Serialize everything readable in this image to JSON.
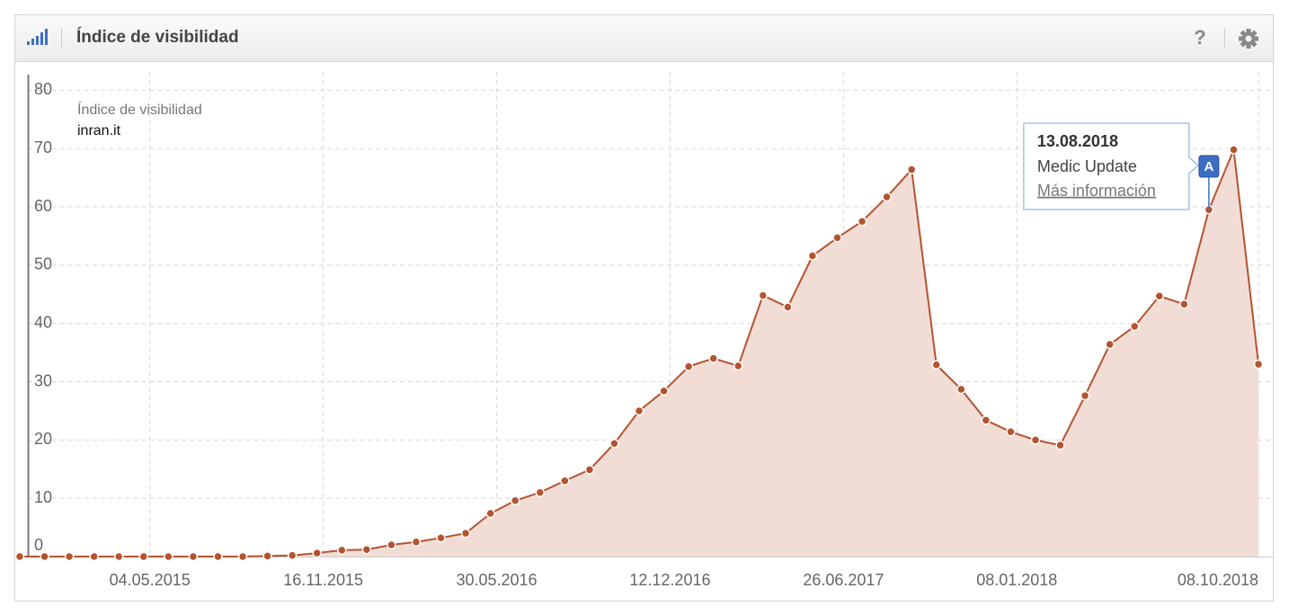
{
  "header": {
    "title": "Índice de visibilidad",
    "help": "?"
  },
  "chart_data": {
    "type": "area",
    "legend_title": "Índice de visibilidad",
    "x": [
      "08.12.2014",
      "05.01.2015",
      "02.02.2015",
      "02.03.2015",
      "30.03.2015",
      "27.04.2015",
      "25.05.2015",
      "22.06.2015",
      "20.07.2015",
      "17.08.2015",
      "14.09.2015",
      "12.10.2015",
      "09.11.2015",
      "07.12.2015",
      "04.01.2016",
      "01.02.2016",
      "29.02.2016",
      "28.03.2016",
      "25.04.2016",
      "23.05.2016",
      "20.06.2016",
      "18.07.2016",
      "15.08.2016",
      "12.09.2016",
      "10.10.2016",
      "07.11.2016",
      "05.12.2016",
      "02.01.2017",
      "30.01.2017",
      "27.02.2017",
      "27.03.2017",
      "24.04.2017",
      "22.05.2017",
      "19.06.2017",
      "17.07.2017",
      "14.08.2017",
      "11.09.2017",
      "09.10.2017",
      "06.11.2017",
      "04.12.2017",
      "01.01.2018",
      "29.01.2018",
      "26.02.2018",
      "26.03.2018",
      "23.04.2018",
      "21.05.2018",
      "18.06.2018",
      "16.07.2018",
      "13.08.2018",
      "10.09.2018",
      "08.10.2018"
    ],
    "series": [
      {
        "name": "inran.it",
        "color": "#b5532f",
        "fill": "#f2ddd6",
        "values": [
          0,
          0,
          0,
          0,
          0,
          0,
          0,
          0,
          0,
          0,
          0.1,
          0.2,
          0.6,
          1.1,
          1.2,
          2.0,
          2.5,
          3.2,
          4.0,
          7.4,
          9.6,
          11.0,
          13.0,
          14.9,
          19.4,
          25.0,
          28.4,
          32.6,
          34.0,
          32.7,
          44.8,
          42.8,
          51.6,
          54.7,
          57.5,
          61.7,
          66.4,
          32.9,
          28.7,
          23.4,
          21.4,
          20.0,
          19.1,
          27.6,
          36.4,
          39.5,
          44.7,
          43.3,
          59.5,
          69.8,
          33.0
        ]
      }
    ],
    "xlim": [
      "08.12.2014",
      "08.10.2018"
    ],
    "xticks": [
      "04.05.2015",
      "16.11.2015",
      "30.05.2016",
      "12.12.2016",
      "26.06.2017",
      "08.01.2018",
      "08.10.2018"
    ],
    "ylim": [
      0,
      85
    ],
    "yticks": [
      0,
      10,
      20,
      30,
      40,
      50,
      60,
      70,
      80
    ],
    "grid": true,
    "annotations": [
      {
        "x": "13.08.2018",
        "label": "A",
        "title": "Medic Update",
        "link": "Más información"
      }
    ]
  }
}
